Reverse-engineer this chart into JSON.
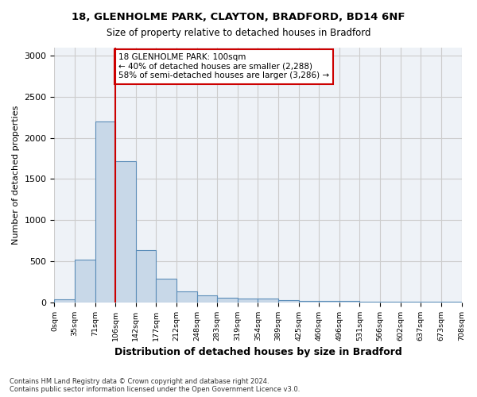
{
  "title_line1": "18, GLENHOLME PARK, CLAYTON, BRADFORD, BD14 6NF",
  "title_line2": "Size of property relative to detached houses in Bradford",
  "xlabel": "Distribution of detached houses by size in Bradford",
  "ylabel": "Number of detached properties",
  "bar_values": [
    30,
    520,
    2200,
    1720,
    630,
    290,
    130,
    80,
    50,
    40,
    40,
    25,
    20,
    20,
    15,
    10,
    8,
    5,
    4,
    3
  ],
  "bin_edges": [
    "0sqm",
    "35sqm",
    "71sqm",
    "106sqm",
    "142sqm",
    "177sqm",
    "212sqm",
    "248sqm",
    "283sqm",
    "319sqm",
    "354sqm",
    "389sqm",
    "425sqm",
    "460sqm",
    "496sqm",
    "531sqm",
    "566sqm",
    "602sqm",
    "637sqm",
    "673sqm",
    "708sqm"
  ],
  "bar_color": "#c8d8e8",
  "bar_edge_color": "#5b8db8",
  "grid_color": "#cccccc",
  "annotation_box_color": "#cc0000",
  "property_line_color": "#cc0000",
  "annotation_text": "18 GLENHOLME PARK: 100sqm\n← 40% of detached houses are smaller (2,288)\n58% of semi-detached houses are larger (3,286) →",
  "footnote": "Contains HM Land Registry data © Crown copyright and database right 2024.\nContains public sector information licensed under the Open Government Licence v3.0.",
  "ylim": [
    0,
    3100
  ],
  "yticks": [
    0,
    500,
    1000,
    1500,
    2000,
    2500,
    3000
  ],
  "background_color": "#eef2f7"
}
